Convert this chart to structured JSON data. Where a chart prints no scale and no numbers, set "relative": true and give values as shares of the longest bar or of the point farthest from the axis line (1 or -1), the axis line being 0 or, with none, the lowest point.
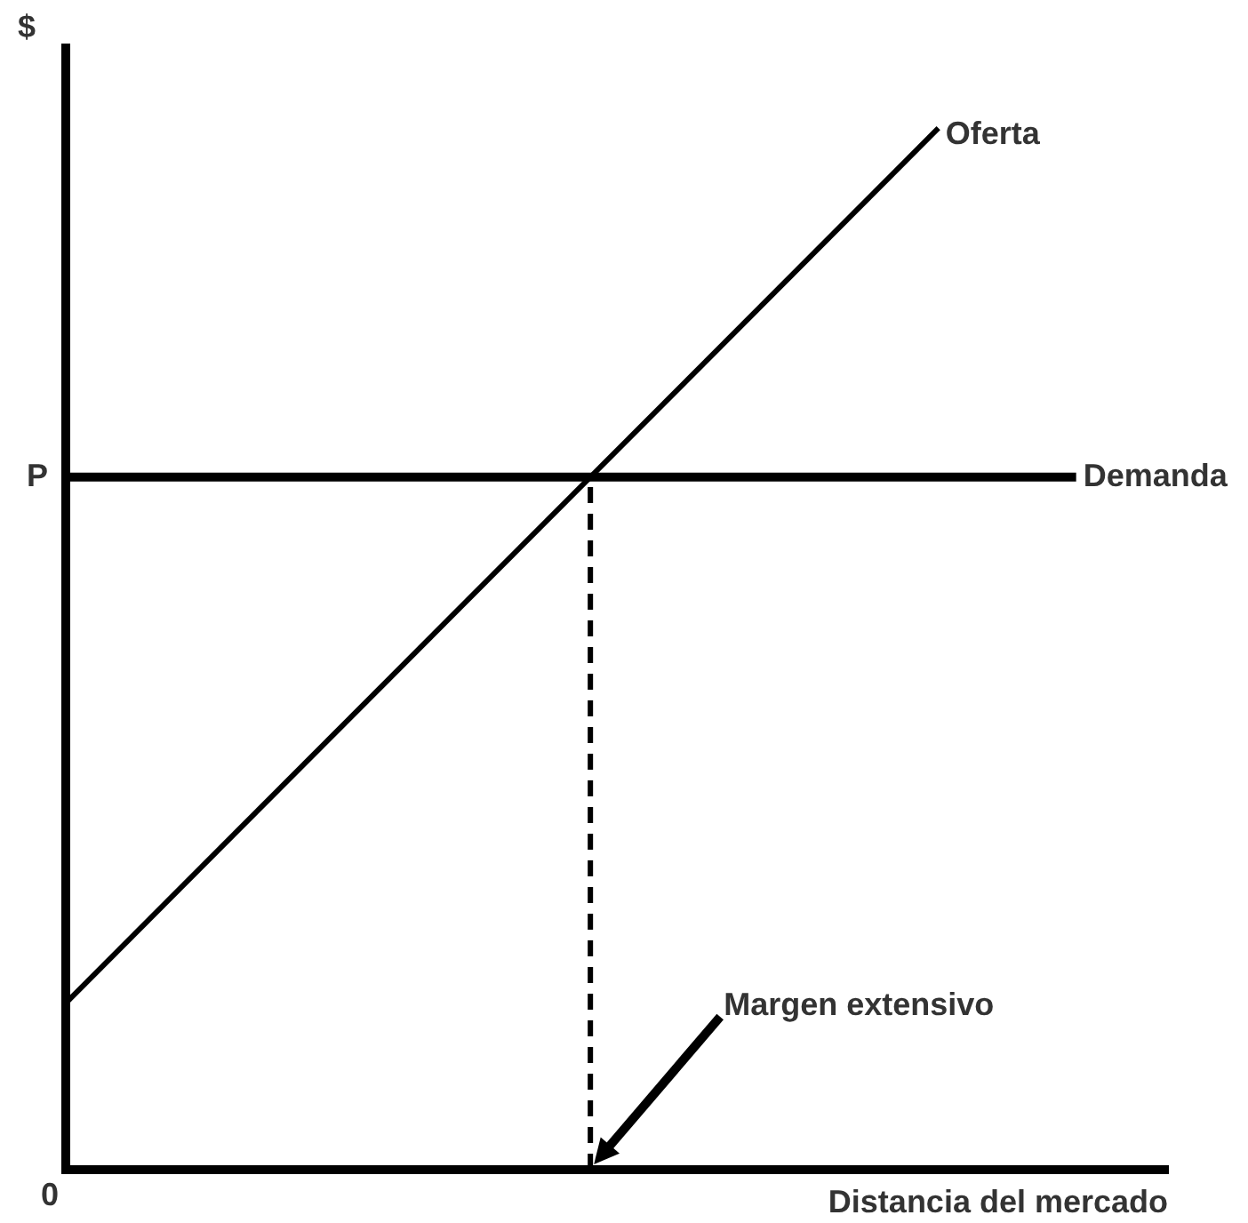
{
  "chart_data": {
    "type": "line",
    "relative": true,
    "legend": false,
    "grid": false,
    "marker": "none",
    "ylabel": "$",
    "xlabel": "Distancia del mercado",
    "categories": [
      null,
      null,
      null,
      null,
      null,
      null,
      null,
      null,
      null,
      null,
      null,
      null,
      null,
      null,
      null,
      null,
      null,
      null,
      null,
      null,
      null,
      null,
      null,
      null,
      null,
      null,
      null,
      null,
      null,
      null,
      null,
      null,
      null,
      null,
      null,
      null,
      null,
      null,
      null,
      null,
      null,
      null,
      null,
      null,
      null,
      null,
      null,
      null,
      null
    ],
    "series": [
      {
        "name": "Oferta",
        "color": "#000000",
        "values": [
          0.16,
          null,
          null,
          null,
          null,
          null,
          null,
          null,
          null,
          null,
          null,
          null,
          null,
          null,
          null,
          null,
          null,
          null,
          null,
          null,
          null,
          null,
          null,
          null,
          null,
          null,
          null,
          null,
          null,
          null,
          null,
          null,
          null,
          null,
          null,
          null,
          null,
          null,
          1,
          null,
          null,
          null,
          null,
          null,
          null,
          null,
          null,
          null,
          null
        ]
      },
      {
        "name": "Demanda",
        "color": "#000000",
        "values": [
          0.665,
          null,
          null,
          null,
          null,
          null,
          null,
          null,
          null,
          null,
          null,
          null,
          null,
          null,
          null,
          null,
          null,
          null,
          null,
          null,
          null,
          null,
          null,
          null,
          null,
          null,
          null,
          null,
          null,
          null,
          null,
          null,
          null,
          null,
          null,
          null,
          null,
          null,
          null,
          null,
          null,
          null,
          null,
          null,
          0.665,
          null,
          null,
          null,
          null
        ]
      }
    ],
    "annotations": [
      "P",
      "0",
      "Margen extensivo"
    ]
  }
}
